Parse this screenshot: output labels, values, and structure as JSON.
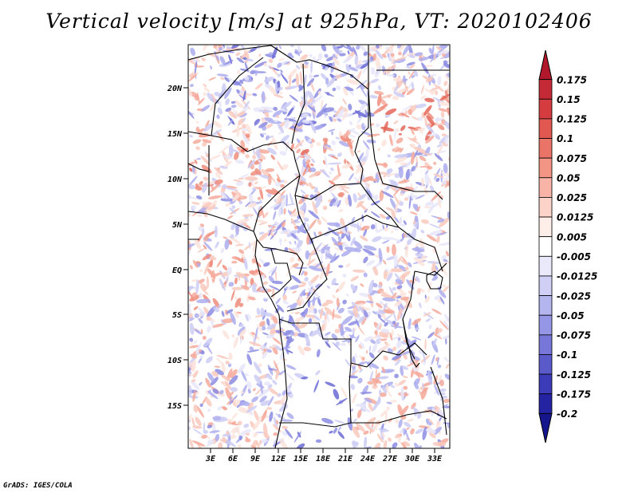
{
  "title": "Vertical velocity [m/s] at 925hPa, VT: 2020102406",
  "credit": "GrADS: IGES/COLA",
  "lat_labels": [
    "20N",
    "15N",
    "10N",
    "5N",
    "EQ",
    "5S",
    "10S",
    "15S"
  ],
  "lon_labels": [
    "3E",
    "6E",
    "9E",
    "12E",
    "15E",
    "18E",
    "21E",
    "24E",
    "27E",
    "30E",
    "33E"
  ],
  "colorbar": {
    "levels": [
      "0.175",
      "0.15",
      "0.125",
      "0.1",
      "0.075",
      "0.05",
      "0.025",
      "0.0125",
      "0.005",
      "-0.005",
      "-0.0125",
      "-0.025",
      "-0.05",
      "-0.075",
      "-0.1",
      "-0.125",
      "-0.175",
      "-0.2"
    ],
    "colors": [
      "#b2182b",
      "#c42a35",
      "#d43c40",
      "#e0584f",
      "#ea7468",
      "#f29584",
      "#f8b5a7",
      "#fcd3c8",
      "#fdeee9",
      "#ffffff",
      "#e9e9fb",
      "#d0d0f6",
      "#b4b4ef",
      "#9696e6",
      "#7777da",
      "#5a5acb",
      "#3c3cb8",
      "#2424a3",
      "#15158e"
    ]
  }
}
